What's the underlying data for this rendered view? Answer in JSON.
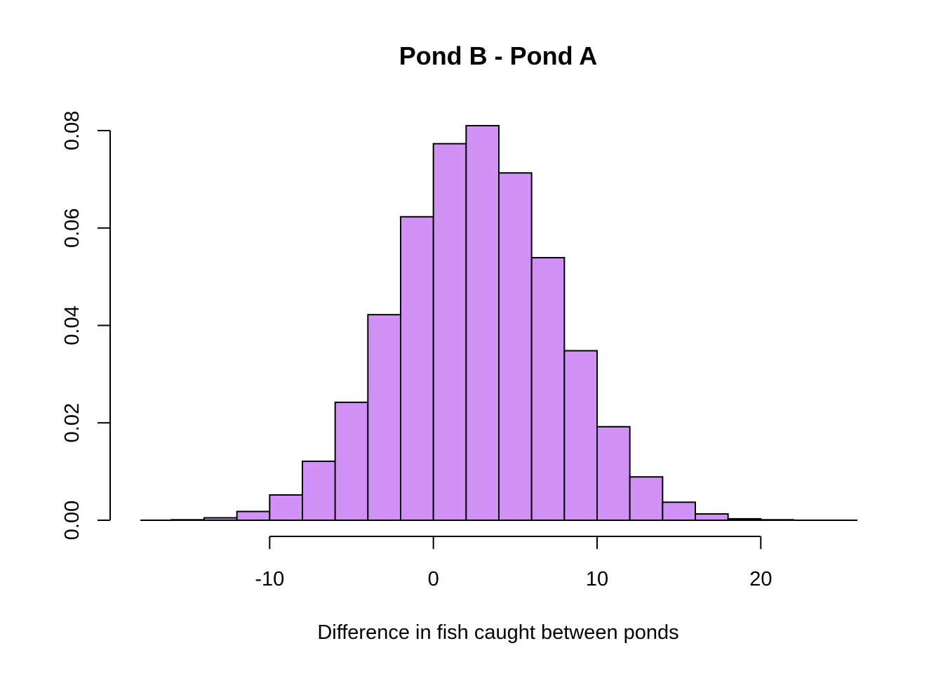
{
  "chart_data": {
    "type": "bar",
    "subtype": "histogram",
    "title": "Pond B - Pond A",
    "xlabel": "Difference in fish caught between ponds",
    "ylabel": "",
    "bin_edges": [
      -16,
      -14,
      -12,
      -10,
      -8,
      -6,
      -4,
      -2,
      0,
      2,
      4,
      6,
      8,
      10,
      12,
      14,
      16,
      18,
      20,
      22,
      24
    ],
    "values": [
      0.0001,
      0.0005,
      0.0018,
      0.0052,
      0.0121,
      0.0242,
      0.0422,
      0.0623,
      0.0773,
      0.081,
      0.0713,
      0.0539,
      0.0348,
      0.0192,
      0.0089,
      0.0037,
      0.0013,
      0.0003,
      0.0001,
      0.0
    ],
    "xlim": [
      -17.9,
      25.9
    ],
    "ylim": [
      0,
      0.081
    ],
    "x_ticks": [
      -10,
      0,
      10,
      20
    ],
    "x_tick_labels": [
      "-10",
      "0",
      "10",
      "20"
    ],
    "y_ticks": [
      0,
      0.02,
      0.04,
      0.06,
      0.08
    ],
    "y_tick_labels": [
      "0.00",
      "0.02",
      "0.04",
      "0.06",
      "0.08"
    ],
    "grid": false,
    "legend": "none",
    "colors": {
      "bar_fill": "#D291F7",
      "bar_stroke": "#000000"
    }
  }
}
